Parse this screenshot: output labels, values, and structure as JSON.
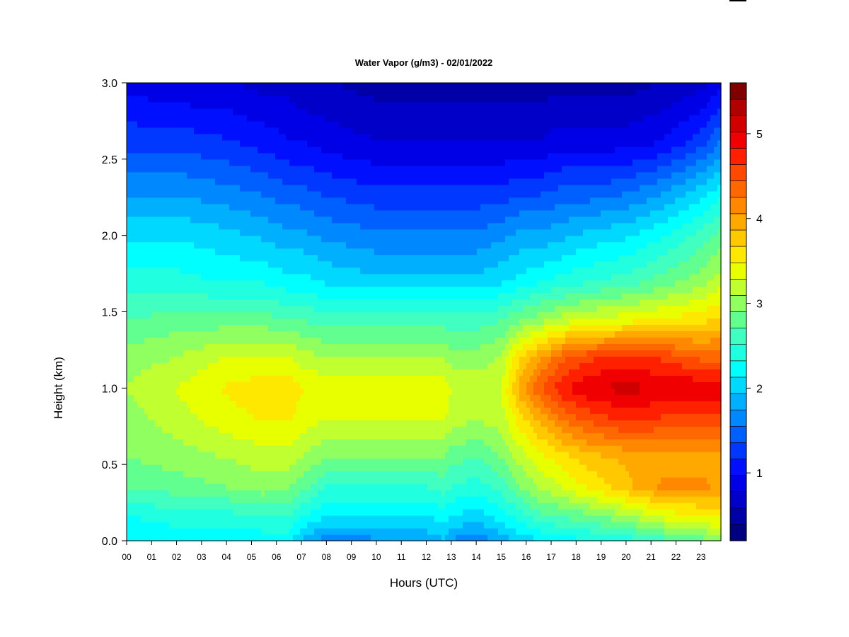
{
  "chart_data": {
    "type": "heatmap",
    "title": "Water Vapor (g/m3) - 02/01/2022",
    "xlabel": "Hours (UTC)",
    "ylabel": "Height (km)",
    "xlim": [
      0,
      23.8
    ],
    "ylim": [
      0.0,
      3.0
    ],
    "x_ticks": [
      "00",
      "01",
      "02",
      "03",
      "04",
      "05",
      "06",
      "07",
      "08",
      "09",
      "10",
      "11",
      "12",
      "13",
      "14",
      "15",
      "16",
      "17",
      "18",
      "19",
      "20",
      "21",
      "22",
      "23"
    ],
    "y_ticks": [
      "0.0",
      "0.5",
      "1.0",
      "1.5",
      "2.0",
      "2.5",
      "3.0"
    ],
    "colorbar": {
      "range": [
        0.2,
        5.6
      ],
      "ticks": [
        "1",
        "2",
        "3",
        "4",
        "5"
      ],
      "colors": [
        "#000080",
        "#0000A6",
        "#0000C8",
        "#0000E6",
        "#0010FF",
        "#0038FF",
        "#0060FF",
        "#0088FF",
        "#00B0FF",
        "#00D8FF",
        "#00FFFF",
        "#20FFE0",
        "#40FFC0",
        "#60FF90",
        "#90FF60",
        "#C0FF30",
        "#E8FF00",
        "#FFE800",
        "#FFC800",
        "#FFA800",
        "#FF8800",
        "#FF6800",
        "#FF4800",
        "#FF2000",
        "#F00000",
        "#D00000",
        "#B00000",
        "#800000"
      ]
    },
    "x_values_hours": [
      0,
      2,
      4,
      5.5,
      6.5,
      7,
      8,
      10,
      12,
      12.7,
      13,
      14,
      15,
      15.8,
      16.5,
      17.5,
      18.5,
      20,
      21.5,
      23,
      23.8
    ],
    "y_values_km": [
      0.0,
      0.15,
      0.35,
      0.55,
      0.8,
      1.0,
      1.2,
      1.45,
      1.7,
      2.0,
      2.3,
      2.6,
      3.0
    ],
    "values": [
      [
        2.1,
        2.3,
        2.7,
        2.9,
        3.0,
        3.1,
        3.0,
        2.7,
        2.4,
        2.1,
        1.7,
        1.3,
        0.9
      ],
      [
        2.2,
        2.4,
        2.8,
        3.0,
        3.2,
        3.3,
        3.1,
        2.8,
        2.4,
        2.1,
        1.7,
        1.3,
        0.8
      ],
      [
        2.2,
        2.4,
        2.9,
        3.1,
        3.4,
        3.5,
        3.3,
        2.8,
        2.3,
        2.0,
        1.6,
        1.2,
        0.8
      ],
      [
        2.2,
        2.5,
        3.0,
        3.2,
        3.5,
        3.6,
        3.3,
        2.8,
        2.3,
        1.9,
        1.5,
        1.1,
        0.7
      ],
      [
        2.2,
        2.5,
        2.9,
        3.2,
        3.5,
        3.6,
        3.3,
        2.7,
        2.2,
        1.8,
        1.4,
        1.0,
        0.7
      ],
      [
        1.9,
        2.3,
        2.8,
        3.1,
        3.4,
        3.5,
        3.2,
        2.7,
        2.2,
        1.8,
        1.4,
        1.0,
        0.6
      ],
      [
        1.6,
        2.1,
        2.5,
        2.9,
        3.3,
        3.4,
        3.1,
        2.6,
        2.1,
        1.7,
        1.3,
        0.9,
        0.6
      ],
      [
        1.7,
        2.1,
        2.5,
        2.9,
        3.3,
        3.4,
        3.1,
        2.6,
        2.0,
        1.6,
        1.2,
        0.8,
        0.5
      ],
      [
        1.8,
        2.1,
        2.5,
        2.9,
        3.3,
        3.4,
        3.1,
        2.6,
        2.0,
        1.6,
        1.2,
        0.8,
        0.5
      ],
      [
        1.9,
        2.2,
        2.6,
        2.9,
        3.3,
        3.4,
        3.1,
        2.6,
        2.0,
        1.6,
        1.2,
        0.8,
        0.5
      ],
      [
        1.7,
        2.1,
        2.5,
        2.8,
        3.2,
        3.3,
        3.0,
        2.6,
        2.0,
        1.6,
        1.2,
        0.8,
        0.5
      ],
      [
        1.6,
        2.0,
        2.4,
        2.7,
        3.1,
        3.2,
        3.0,
        2.6,
        2.0,
        1.6,
        1.2,
        0.8,
        0.5
      ],
      [
        1.8,
        2.2,
        2.6,
        2.9,
        3.2,
        3.3,
        3.1,
        2.7,
        2.1,
        1.7,
        1.2,
        0.8,
        0.5
      ],
      [
        2.0,
        2.4,
        2.9,
        3.2,
        3.6,
        4.0,
        3.7,
        2.9,
        2.2,
        1.8,
        1.3,
        0.8,
        0.5
      ],
      [
        2.1,
        2.6,
        3.1,
        3.4,
        3.9,
        4.4,
        4.0,
        3.0,
        2.3,
        1.8,
        1.3,
        0.8,
        0.5
      ],
      [
        2.2,
        2.7,
        3.3,
        3.6,
        4.3,
        4.8,
        4.4,
        3.2,
        2.4,
        1.9,
        1.4,
        0.9,
        0.5
      ],
      [
        2.3,
        2.8,
        3.5,
        3.8,
        4.5,
        5.0,
        4.6,
        3.3,
        2.5,
        2.0,
        1.4,
        0.9,
        0.5
      ],
      [
        2.4,
        3.0,
        3.8,
        3.9,
        4.7,
        5.1,
        4.7,
        3.4,
        2.6,
        2.1,
        1.5,
        0.9,
        0.5
      ],
      [
        2.6,
        3.3,
        4.1,
        4.0,
        4.6,
        5.0,
        4.6,
        3.5,
        2.8,
        2.3,
        1.7,
        1.0,
        0.6
      ],
      [
        2.8,
        3.4,
        4.1,
        4.0,
        4.5,
        5.0,
        4.4,
        3.6,
        3.0,
        2.6,
        2.0,
        1.3,
        0.7
      ],
      [
        3.0,
        3.5,
        4.0,
        4.0,
        4.6,
        5.0,
        4.4,
        3.7,
        3.2,
        2.8,
        2.2,
        1.6,
        0.9
      ]
    ]
  }
}
